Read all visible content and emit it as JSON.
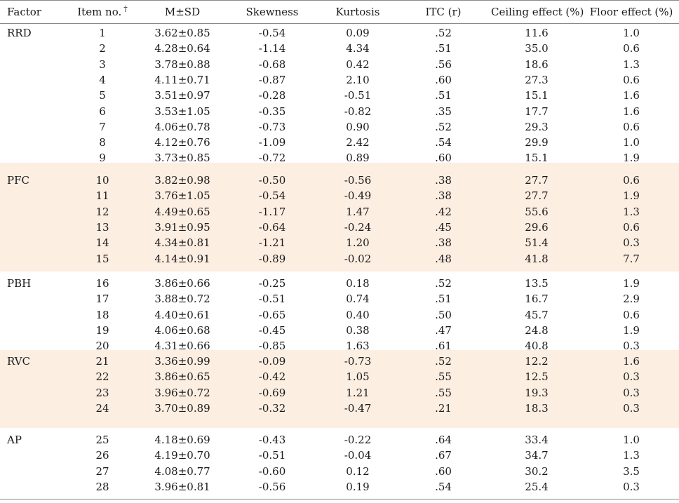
{
  "headers": [
    "Factor",
    "Item no.",
    "M±SD",
    "Skewness",
    "Kurtosis",
    "ITC (r)",
    "Ceiling effect (%)",
    "Floor effect (%)"
  ],
  "item_no_mark": "†",
  "groups": [
    {
      "factor": "RRD",
      "shaded": false,
      "rows": [
        [
          "1",
          "3.62±0.85",
          "-0.54",
          "0.09",
          ".52",
          "11.6",
          "1.0"
        ],
        [
          "2",
          "4.28±0.64",
          "-1.14",
          "4.34",
          ".51",
          "35.0",
          "0.6"
        ],
        [
          "3",
          "3.78±0.88",
          "-0.68",
          "0.42",
          ".56",
          "18.6",
          "1.3"
        ],
        [
          "4",
          "4.11±0.71",
          "-0.87",
          "2.10",
          ".60",
          "27.3",
          "0.6"
        ],
        [
          "5",
          "3.51±0.97",
          "-0.28",
          "-0.51",
          ".51",
          "15.1",
          "1.6"
        ],
        [
          "6",
          "3.53±1.05",
          "-0.35",
          "-0.82",
          ".35",
          "17.7",
          "1.6"
        ],
        [
          "7",
          "4.06±0.78",
          "-0.73",
          "0.90",
          ".52",
          "29.3",
          "0.6"
        ],
        [
          "8",
          "4.12±0.76",
          "-1.09",
          "2.42",
          ".54",
          "29.9",
          "1.0"
        ],
        [
          "9",
          "3.73±0.85",
          "-0.72",
          "0.89",
          ".60",
          "15.1",
          "1.9"
        ]
      ]
    },
    {
      "factor": "PFC",
      "shaded": true,
      "rows": [
        [
          "10",
          "3.82±0.98",
          "-0.50",
          "-0.56",
          ".38",
          "27.7",
          "0.6"
        ],
        [
          "11",
          "3.76±1.05",
          "-0.54",
          "-0.49",
          ".38",
          "27.7",
          "1.9"
        ],
        [
          "12",
          "4.49±0.65",
          "-1.17",
          "1.47",
          ".42",
          "55.6",
          "1.3"
        ],
        [
          "13",
          "3.91±0.95",
          "-0.64",
          "-0.24",
          ".45",
          "29.6",
          "0.6"
        ],
        [
          "14",
          "4.34±0.81",
          "-1.21",
          "1.20",
          ".38",
          "51.4",
          "0.3"
        ],
        [
          "15",
          "4.14±0.91",
          "-0.89",
          "-0.02",
          ".48",
          "41.8",
          "7.7"
        ]
      ]
    },
    {
      "factor": "PBH",
      "shaded": false,
      "rows": [
        [
          "16",
          "3.86±0.66",
          "-0.25",
          "0.18",
          ".52",
          "13.5",
          "1.9"
        ],
        [
          "17",
          "3.88±0.72",
          "-0.51",
          "0.74",
          ".51",
          "16.7",
          "2.9"
        ],
        [
          "18",
          "4.40±0.61",
          "-0.65",
          "0.40",
          ".50",
          "45.7",
          "0.6"
        ],
        [
          "19",
          "4.06±0.68",
          "-0.45",
          "0.38",
          ".47",
          "24.8",
          "1.9"
        ],
        [
          "20",
          "4.31±0.66",
          "-0.85",
          "1.63",
          ".61",
          "40.8",
          "0.3"
        ]
      ]
    },
    {
      "factor": "RVC",
      "shaded": true,
      "rows": [
        [
          "21",
          "3.36±0.99",
          "-0.09",
          "-0.73",
          ".52",
          "12.2",
          "1.6"
        ],
        [
          "22",
          "3.86±0.65",
          "-0.42",
          "1.05",
          ".55",
          "12.5",
          "0.3"
        ],
        [
          "23",
          "3.96±0.72",
          "-0.69",
          "1.21",
          ".55",
          "19.3",
          "0.3"
        ],
        [
          "24",
          "3.70±0.89",
          "-0.32",
          "-0.47",
          ".21",
          "18.3",
          "0.3"
        ]
      ]
    },
    {
      "factor": "AP",
      "shaded": false,
      "rows": [
        [
          "25",
          "4.18±0.69",
          "-0.43",
          "-0.22",
          ".64",
          "33.4",
          "1.0"
        ],
        [
          "26",
          "4.19±0.70",
          "-0.51",
          "-0.04",
          ".67",
          "34.7",
          "1.3"
        ],
        [
          "27",
          "4.08±0.77",
          "-0.60",
          "0.12",
          ".60",
          "30.2",
          "3.5"
        ],
        [
          "28",
          "3.96±0.81",
          "-0.56",
          "0.19",
          ".54",
          "25.4",
          "0.3"
        ]
      ]
    }
  ]
}
